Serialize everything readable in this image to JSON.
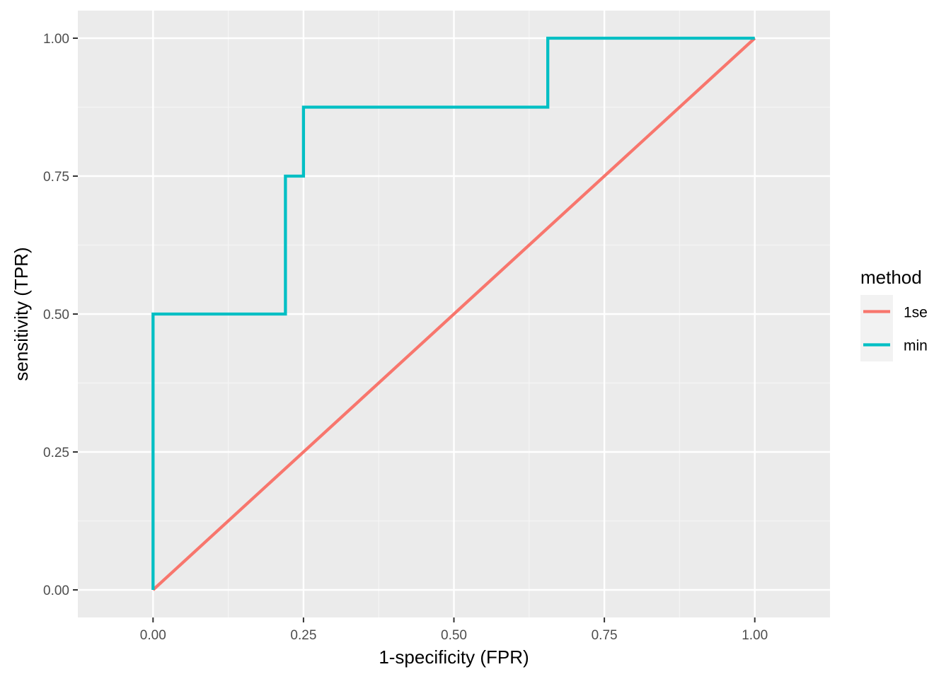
{
  "chart_data": {
    "type": "line",
    "xlabel": "1-specificity (FPR)",
    "ylabel": "sensitivity (TPR)",
    "xlim": [
      -0.125,
      1.125
    ],
    "ylim": [
      -0.05,
      1.05
    ],
    "x_ticks": [
      0.0,
      0.25,
      0.5,
      0.75,
      1.0
    ],
    "y_ticks": [
      0.0,
      0.25,
      0.5,
      0.75,
      1.0
    ],
    "x_tick_labels": [
      "0.00",
      "0.25",
      "0.50",
      "0.75",
      "1.00"
    ],
    "y_tick_labels": [
      "0.00",
      "0.25",
      "0.50",
      "0.75",
      "1.00"
    ],
    "grid": true,
    "legend_position": "right",
    "legend": {
      "title": "method",
      "items": [
        {
          "label": "1se",
          "color": "#F8766D"
        },
        {
          "label": "min",
          "color": "#00BFC4"
        }
      ]
    },
    "series": [
      {
        "name": "1se",
        "color": "#F8766D",
        "x": [
          0.0,
          1.0
        ],
        "y": [
          0.0,
          1.0
        ]
      },
      {
        "name": "min",
        "color": "#00BFC4",
        "x": [
          0.0,
          0.0,
          0.22,
          0.22,
          0.25,
          0.25,
          0.656,
          0.656,
          1.0
        ],
        "y": [
          0.0,
          0.5,
          0.5,
          0.75,
          0.75,
          0.875,
          0.875,
          1.0,
          1.0
        ]
      }
    ],
    "colors": {
      "panel_background": "#EBEBEB",
      "grid_major": "#FFFFFF",
      "grid_minor": "#F5F5F5"
    }
  }
}
